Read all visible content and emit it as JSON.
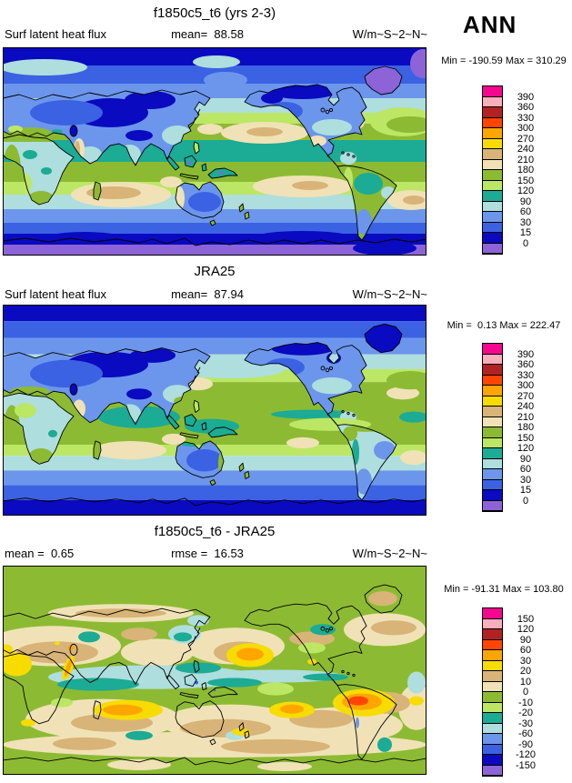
{
  "season": "ANN",
  "colorbar_colors_top_to_bottom": [
    "#F5078E",
    "#FBAEBB",
    "#B22222",
    "#FF4500",
    "#FFA500",
    "#F8DC00",
    "#D8B478",
    "#F0E2B6",
    "#8CBB33",
    "#BCE764",
    "#1CAB94",
    "#AEDEDE",
    "#6C96EC",
    "#3A62E2",
    "#0A0AC0",
    "#8C64D8"
  ],
  "panels": [
    {
      "title": "f1850c5_t6 (yrs 2-3)",
      "left_text": "Surf latent heat flux",
      "center_text": "mean=  88.58",
      "units": "W/m~S~2~N~",
      "colorbar": {
        "minmax": "Min = -190.59 Max = 310.29",
        "labels": [
          "390",
          "360",
          "330",
          "300",
          "270",
          "240",
          "210",
          "180",
          "150",
          "120",
          "90",
          "60",
          "30",
          "15",
          "0"
        ]
      }
    },
    {
      "title": "JRA25",
      "left_text": "Surf latent heat flux",
      "center_text": "mean=  87.94",
      "units": "W/m~S~2~N~",
      "colorbar": {
        "minmax": "Min =  0.13 Max = 222.47",
        "labels": [
          "390",
          "360",
          "330",
          "300",
          "270",
          "240",
          "210",
          "180",
          "150",
          "120",
          "90",
          "60",
          "30",
          "15",
          "0"
        ]
      }
    },
    {
      "title": "f1850c5_t6 - JRA25",
      "left_text": "mean =  0.65",
      "center_text": "rmse =  16.53",
      "units": "W/m~S~2~N~",
      "colorbar": {
        "minmax": "Min = -91.31 Max = 103.80",
        "labels": [
          "150",
          "120",
          "90",
          "60",
          "30",
          "20",
          "10",
          "0",
          "-10",
          "-20",
          "-30",
          "-60",
          "-90",
          "-120",
          "-150"
        ]
      }
    }
  ],
  "chart_data": [
    {
      "type": "contour-map",
      "panel": "model",
      "title": "f1850c5_t6 (yrs 2-3)",
      "variable": "Surf latent heat flux",
      "season": "ANN",
      "units": "W/m~S~2~N~",
      "mean": 88.58,
      "min": -190.59,
      "max": 310.29,
      "contour_levels": [
        0,
        15,
        30,
        60,
        90,
        120,
        150,
        180,
        210,
        240,
        270,
        300,
        330,
        360,
        390
      ],
      "projection": "global cylindrical equidistant, Pacific-centered",
      "legend_position": "right"
    },
    {
      "type": "contour-map",
      "panel": "reference",
      "title": "JRA25",
      "variable": "Surf latent heat flux",
      "season": "ANN",
      "units": "W/m~S~2~N~",
      "mean": 87.94,
      "min": 0.13,
      "max": 222.47,
      "contour_levels": [
        0,
        15,
        30,
        60,
        90,
        120,
        150,
        180,
        210,
        240,
        270,
        300,
        330,
        360,
        390
      ],
      "projection": "global cylindrical equidistant, Pacific-centered",
      "legend_position": "right"
    },
    {
      "type": "contour-map",
      "panel": "difference",
      "title": "f1850c5_t6 - JRA25",
      "variable": "Surf latent heat flux difference",
      "season": "ANN",
      "units": "W/m~S~2~N~",
      "mean": 0.65,
      "rmse": 16.53,
      "min": -91.31,
      "max": 103.8,
      "contour_levels": [
        -150,
        -120,
        -90,
        -60,
        -30,
        -20,
        -10,
        0,
        10,
        20,
        30,
        60,
        90,
        120,
        150
      ],
      "projection": "global cylindrical equidistant, Pacific-centered",
      "legend_position": "right"
    }
  ]
}
